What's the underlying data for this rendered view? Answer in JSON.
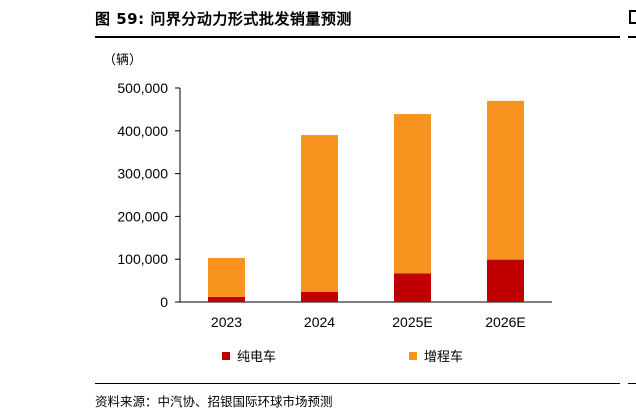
{
  "header": {
    "title": "图 59: 问界分动力形式批发销量预测"
  },
  "unit_label": "（辆）",
  "source": "资料来源：中汽协、招银国际环球市场预测",
  "colors": {
    "ev": "#C00000",
    "erev": "#F7931E",
    "axis": "#000000"
  },
  "chart_data": {
    "type": "bar",
    "stacked": true,
    "title": "问界分动力形式批发销量预测",
    "ylabel": "（辆）",
    "xlabel": "",
    "categories": [
      "2023",
      "2024",
      "2025E",
      "2026E"
    ],
    "series": [
      {
        "name": "纯电车",
        "values": [
          12000,
          24000,
          67000,
          99000
        ]
      },
      {
        "name": "增程车",
        "values": [
          91000,
          366000,
          372000,
          371000
        ]
      }
    ],
    "ylim": [
      0,
      500000
    ],
    "yticks": [
      0,
      100000,
      200000,
      300000,
      400000,
      500000
    ],
    "ytick_labels": [
      "0",
      "100,000",
      "200,000",
      "300,000",
      "400,000",
      "500,000"
    ],
    "grid": false,
    "legend_position": "bottom"
  }
}
